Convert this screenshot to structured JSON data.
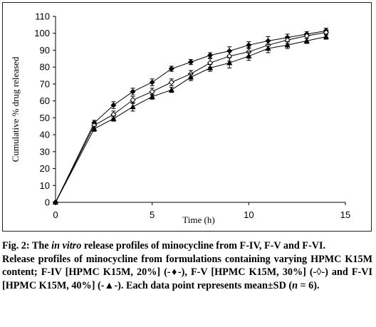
{
  "figure": {
    "label": "Fig. 2:",
    "title_pre": "The ",
    "title_italic": "in vitro",
    "title_post": " release profiles of minocycline from F-IV, F-V and F-VI.",
    "desc_1": "Release profiles of minocycline from formulations containing varying HPMC K15M content; F-IV [HPMC K15M, 20%] (-♦-), F-V [HPMC K15M, 30%] (-◊-) and F-VI [HPMC K15M, 40%] (-▲-). Each data point represents mean±SD (",
    "desc_n": "n",
    "desc_2": " = 6)."
  },
  "chart_data": {
    "type": "line",
    "xlabel": "Time (h)",
    "ylabel": "Cumulative % drug released",
    "xlim": [
      0,
      15
    ],
    "ylim": [
      0,
      110
    ],
    "xticks": [
      0,
      5,
      10,
      15
    ],
    "yticks": [
      0,
      10,
      20,
      30,
      40,
      50,
      60,
      70,
      80,
      90,
      100,
      110
    ],
    "grid": false,
    "legend": "none",
    "x": [
      0,
      2,
      3,
      4,
      5,
      6,
      7,
      8,
      9,
      10,
      11,
      12,
      13,
      14
    ],
    "series": [
      {
        "marker": "diamond-filled",
        "values": [
          0,
          47,
          57.5,
          65.5,
          71,
          79,
          83,
          87,
          89.5,
          93,
          95.5,
          97.5,
          99.5,
          101.5
        ],
        "error": [
          0,
          1.5,
          2,
          2,
          2,
          1.5,
          1.5,
          1.5,
          2.5,
          2,
          2.5,
          2,
          1.5,
          1.5
        ]
      },
      {
        "marker": "diamond-open",
        "values": [
          0,
          45.5,
          52,
          60.5,
          65.5,
          71,
          76,
          82.5,
          86.5,
          89,
          93,
          96,
          98.5,
          100.5
        ],
        "error": [
          0,
          1.5,
          2,
          2,
          2,
          2,
          2,
          2.5,
          3,
          2.5,
          2.5,
          2,
          1.5,
          1.5
        ]
      },
      {
        "marker": "triangle-filled",
        "values": [
          0,
          43.5,
          49.5,
          56.5,
          62.5,
          66.5,
          74,
          79.5,
          82.5,
          86.5,
          91,
          93,
          95.5,
          98
        ],
        "error": [
          0,
          1.5,
          1.5,
          2.5,
          1.5,
          1.5,
          2,
          2,
          3,
          2.5,
          2.5,
          2,
          1.5,
          1.5
        ]
      }
    ]
  }
}
